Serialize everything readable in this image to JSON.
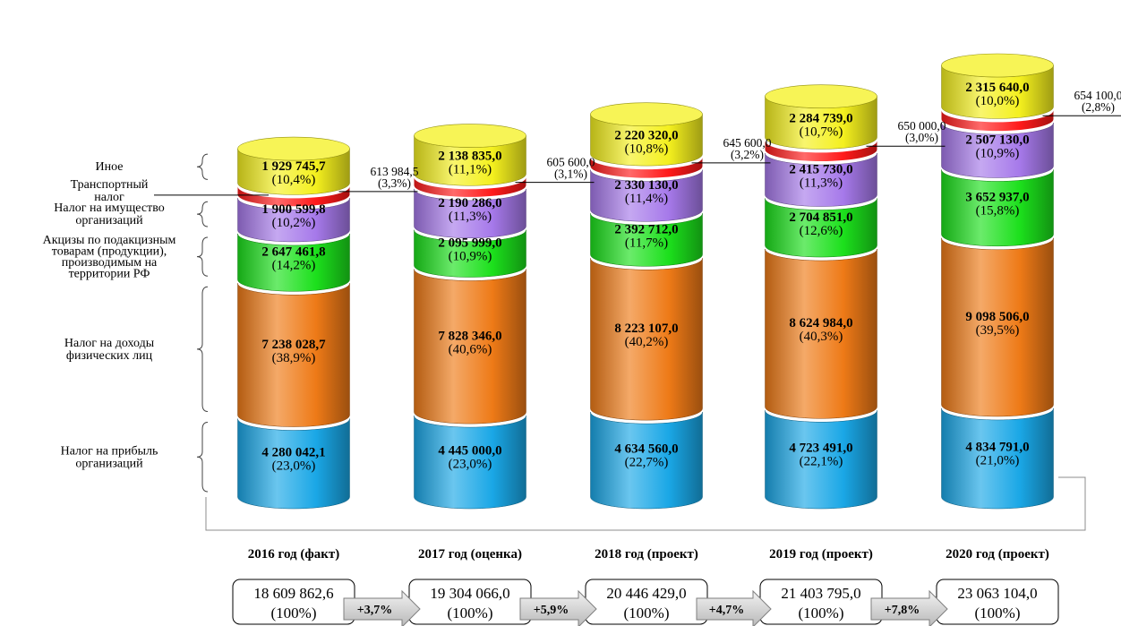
{
  "chart_data": {
    "type": "bar",
    "stacked": true,
    "categories": [
      "2016 год (факт)",
      "2017 год (оценка)",
      "2018 год (проект)",
      "2019 год (проект)",
      "2020 год (проект)"
    ],
    "series": [
      {
        "name": "Налог на прибыль организаций",
        "color": "#1aa7e6",
        "values": [
          4280042.1,
          4445000.0,
          4634560.0,
          4723491.0,
          4834791.0
        ],
        "labels": [
          "4 280 042,1",
          "4 445 000,0",
          "4 634 560,0",
          "4 723 491,0",
          "4 834 791,0"
        ],
        "pct_labels": [
          "(23,0%)",
          "(23,0%)",
          "(22,7%)",
          "(22,1%)",
          "(21,0%)"
        ]
      },
      {
        "name": "Налог на доходы физических лиц",
        "color": "#ee7a17",
        "values": [
          7238028.7,
          7828346.0,
          8223107.0,
          8624984.0,
          9098506.0
        ],
        "labels": [
          "7 238 028,7",
          "7 828 346,0",
          "8 223 107,0",
          "8 624 984,0",
          "9 098 506,0"
        ],
        "pct_labels": [
          "(38,9%)",
          "(40,6%)",
          "(40,2%)",
          "(40,3%)",
          "(39,5%)"
        ]
      },
      {
        "name": "Акцизы по подакцизным товарам (продукции), производимым на территории РФ",
        "color": "#1ce01c",
        "values": [
          2647461.8,
          2095999.0,
          2392712.0,
          2704851.0,
          3652937.0
        ],
        "labels": [
          "2 647 461,8",
          "2 095 999,0",
          "2 392 712,0",
          "2 704 851,0",
          "3 652 937,0"
        ],
        "pct_labels": [
          "(14,2%)",
          "(10,9%)",
          "(11,7%)",
          "(12,6%)",
          "(15,8%)"
        ]
      },
      {
        "name": "Налог на имущество организаций",
        "color": "#a679ea",
        "values": [
          1900599.8,
          2190286.0,
          2330130.0,
          2415730.0,
          2507130.0
        ],
        "labels": [
          "1 900 599,8",
          "2 190 286,0",
          "2 330 130,0",
          "2 415 730,0",
          "2 507 130,0"
        ],
        "pct_labels": [
          "(10,2%)",
          "(11,3%)",
          "(11,4%)",
          "(11,3%)",
          "(10,9%)"
        ]
      },
      {
        "name": "Транспортный налог",
        "color": "#ff1a1a",
        "values": [
          613984.5,
          605600.0,
          645600.0,
          650000.0,
          654100.0
        ],
        "labels": [
          "613 984,5",
          "605 600,0",
          "645 600,0",
          "650 000,0",
          "654 100,0"
        ],
        "pct_labels": [
          "(3,3%)",
          "(3,1%)",
          "(3,2%)",
          "(3,0%)",
          "(2,8%)"
        ]
      },
      {
        "name": "Иное",
        "color": "#f4f01e",
        "values": [
          1929745.7,
          2138835.0,
          2220320.0,
          2284739.0,
          2315640.0
        ],
        "labels": [
          "1 929 745,7",
          "2 138 835,0",
          "2 220 320,0",
          "2 284 739,0",
          "2 315 640,0"
        ],
        "pct_labels": [
          "(10,4%)",
          "(11,1%)",
          "(10,8%)",
          "(10,7%)",
          "(10,0%)"
        ]
      }
    ],
    "legend_lines": [
      [
        "Иное"
      ],
      [
        "Транспортный",
        "налог"
      ],
      [
        "Налог на имущество",
        "организаций"
      ],
      [
        "Акцизы по подакцизным",
        "товарам (продукции),",
        "производимым на",
        "территории РФ"
      ],
      [
        "Налог на доходы",
        "физических лиц"
      ],
      [
        "Налог на прибыль",
        "организаций"
      ]
    ],
    "totals": [
      {
        "label": "18 609 862,6",
        "pct": "(100%)"
      },
      {
        "label": "19 304 066,0",
        "pct": "(100%)"
      },
      {
        "label": "20 446 429,0",
        "pct": "(100%)"
      },
      {
        "label": "21 403 795,0",
        "pct": "(100%)"
      },
      {
        "label": "23 063 104,0",
        "pct": "(100%)"
      }
    ],
    "growth": [
      "+3,7%",
      "+5,9%",
      "+4,7%",
      "+7,8%"
    ]
  }
}
